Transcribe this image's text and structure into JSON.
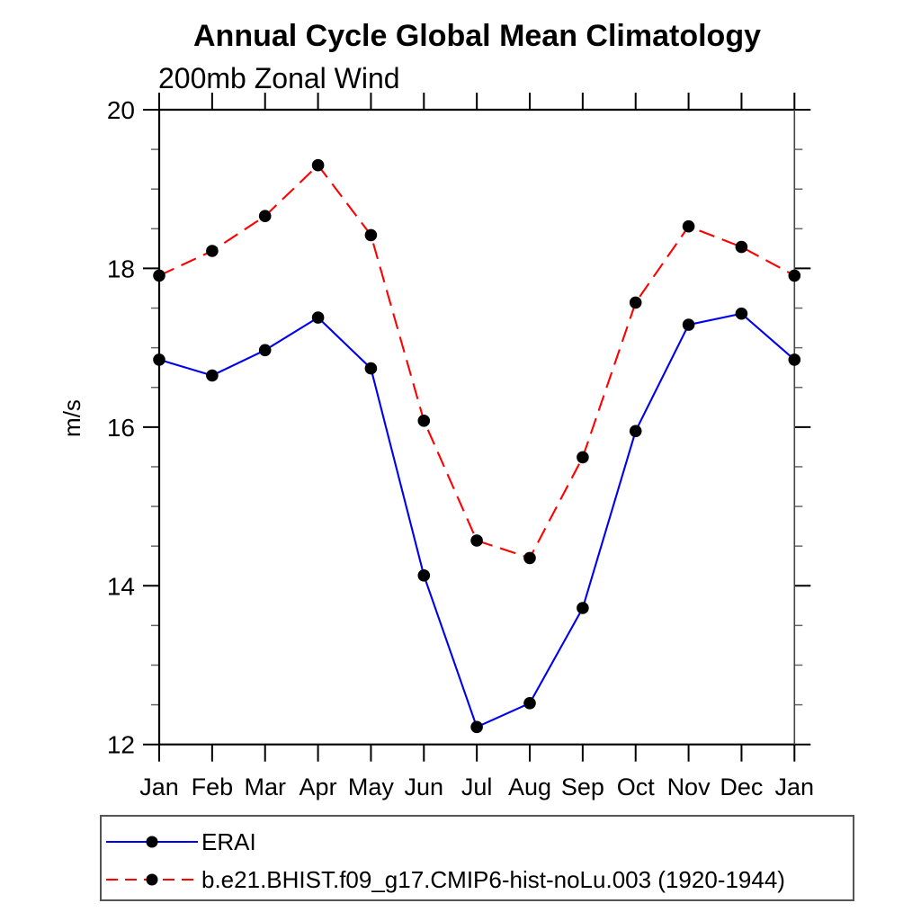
{
  "title": "Annual Cycle Global Mean Climatology",
  "subtitle": "200mb Zonal Wind",
  "y_axis_label": "m/s",
  "colors": {
    "erai_line": "#0000ee",
    "model_line": "#ff0000",
    "marker": "#000000",
    "axis": "#000000",
    "minor_tick": "#666666",
    "legend_border": "#555555"
  },
  "chart_data": {
    "type": "line",
    "title": "Annual Cycle Global Mean Climatology",
    "subtitle": "200mb Zonal Wind",
    "xlabel": "",
    "ylabel": "m/s",
    "categories": [
      "Jan",
      "Feb",
      "Mar",
      "Apr",
      "May",
      "Jun",
      "Jul",
      "Aug",
      "Sep",
      "Oct",
      "Nov",
      "Dec",
      "Jan"
    ],
    "series": [
      {
        "name": "ERAI",
        "color": "#0000ee",
        "line_style": "solid",
        "marker": "filled-circle",
        "marker_color": "#000000",
        "values": [
          16.85,
          16.65,
          16.97,
          17.38,
          16.74,
          14.13,
          12.22,
          12.52,
          13.72,
          15.95,
          17.29,
          17.43,
          16.85
        ]
      },
      {
        "name": "b.e21.BHIST.f09_g17.CMIP6-hist-noLu.003 (1920-1944)",
        "color": "#ff0000",
        "line_style": "dashed",
        "marker": "filled-circle",
        "marker_color": "#000000",
        "values": [
          17.91,
          18.22,
          18.66,
          19.3,
          18.42,
          16.08,
          14.57,
          14.35,
          15.62,
          17.57,
          18.53,
          18.27,
          17.91
        ]
      }
    ],
    "ylim": [
      12,
      20
    ],
    "yticks": [
      12,
      14,
      16,
      18,
      20
    ],
    "y_minor_step": 0.5,
    "grid": false,
    "legend_position": "bottom-left-box"
  }
}
